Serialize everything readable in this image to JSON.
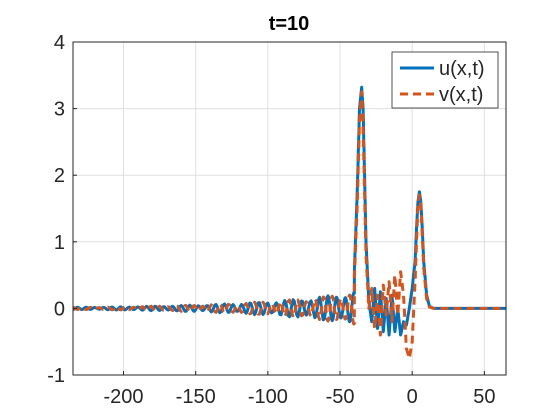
{
  "chart_data": {
    "type": "line",
    "title": "t=10",
    "xlabel": "",
    "ylabel": "",
    "xlim": [
      -235,
      65
    ],
    "ylim": [
      -1,
      4
    ],
    "xticks": [
      -200,
      -150,
      -100,
      -50,
      0,
      50
    ],
    "yticks": [
      -1,
      0,
      1,
      2,
      3,
      4
    ],
    "grid": true,
    "legend_position": "top-right",
    "colors": {
      "u": "#0072BD",
      "v": "#D95319",
      "grid": "#e0e0e0",
      "axis": "#262626"
    },
    "series": [
      {
        "name": "u(x,t)",
        "style": "solid",
        "x": [
          -235,
          -220,
          -200,
          -180,
          -160,
          -140,
          -120,
          -100,
          -80,
          -60,
          -50,
          -45,
          -42,
          -40,
          -38,
          -36.5,
          -35,
          -34,
          -32,
          -30,
          -28,
          -26,
          -24,
          -22,
          -20,
          -18,
          -16,
          -14,
          -12,
          -10,
          -8,
          -6,
          -4,
          -2,
          0,
          2,
          3,
          4,
          5,
          6,
          7,
          8,
          10,
          12,
          15,
          20,
          30,
          40,
          50,
          65
        ],
        "y": [
          0,
          0.01,
          -0.02,
          0.03,
          -0.03,
          0.05,
          -0.07,
          0.09,
          -0.12,
          0.18,
          -0.15,
          0.25,
          -0.1,
          0.6,
          1.8,
          3.0,
          3.32,
          3.0,
          1.0,
          0.1,
          -0.2,
          0.3,
          -0.3,
          0.25,
          -0.35,
          0.15,
          -0.4,
          0.2,
          -0.35,
          0.0,
          -0.4,
          -0.2,
          -0.25,
          0.0,
          0.3,
          0.7,
          1.2,
          1.6,
          1.75,
          1.6,
          1.2,
          0.7,
          0.2,
          0.03,
          0.0,
          0.0,
          0.0,
          0.0,
          0.0,
          0.0
        ]
      },
      {
        "name": "v(x,t)",
        "style": "dashed",
        "x": [
          -235,
          -220,
          -200,
          -180,
          -160,
          -140,
          -120,
          -100,
          -80,
          -60,
          -50,
          -46,
          -43,
          -40,
          -38,
          -36.5,
          -35,
          -34,
          -32,
          -30,
          -28,
          -26,
          -24,
          -22,
          -20,
          -18,
          -16,
          -14,
          -12,
          -10,
          -8,
          -6,
          -4,
          -2,
          0,
          2,
          3,
          4,
          5,
          6,
          7,
          8,
          10,
          12,
          15,
          20,
          30,
          40,
          50,
          65
        ],
        "y": [
          0,
          -0.01,
          0.02,
          -0.03,
          0.04,
          -0.05,
          0.08,
          -0.1,
          0.13,
          -0.17,
          0.2,
          -0.3,
          0.1,
          0.5,
          1.6,
          2.8,
          3.25,
          2.7,
          0.8,
          0.0,
          0.3,
          -0.3,
          0.2,
          -0.4,
          0.35,
          -0.1,
          0.4,
          -0.2,
          0.5,
          -0.1,
          0.55,
          0.2,
          -0.6,
          -0.75,
          -0.5,
          0.4,
          1.0,
          1.55,
          1.7,
          1.55,
          1.1,
          0.6,
          0.15,
          0.02,
          0.0,
          0.0,
          0.0,
          0.0,
          0.0,
          0.0
        ]
      }
    ]
  }
}
